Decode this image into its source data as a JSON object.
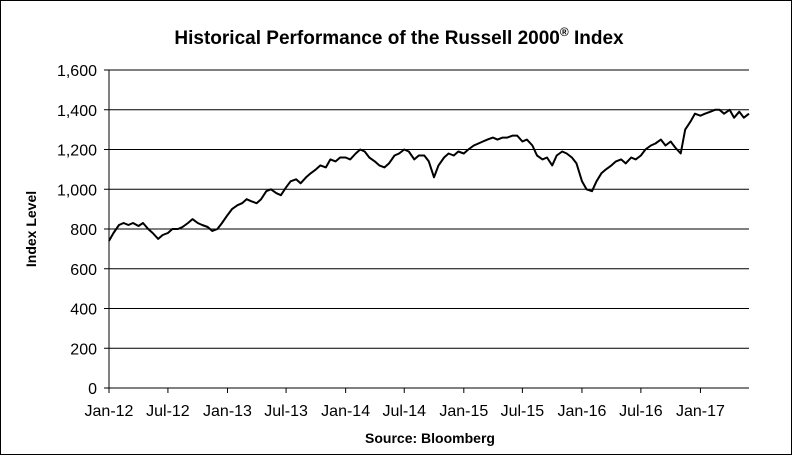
{
  "chart_data": {
    "type": "line",
    "title": "Historical Performance of the Russell 2000",
    "title_superscript": "®",
    "title_suffix": " Index",
    "ylabel": "Index Level",
    "xlabel": "Source: Bloomberg",
    "ylim": [
      0,
      1600
    ],
    "y_ticks": [
      "0",
      "200",
      "400",
      "600",
      "800",
      "1,000",
      "1,200",
      "1,400",
      "1,600"
    ],
    "y_tick_values": [
      0,
      200,
      400,
      600,
      800,
      1000,
      1200,
      1400,
      1600
    ],
    "x_ticks": [
      "Jan-12",
      "Jul-12",
      "Jan-13",
      "Jul-13",
      "Jan-14",
      "Jul-14",
      "Jan-15",
      "Jul-15",
      "Jan-16",
      "Jul-16",
      "Jan-17"
    ],
    "x_tick_dates": [
      "2012-01-01",
      "2012-07-01",
      "2013-01-01",
      "2013-07-01",
      "2014-01-01",
      "2014-07-01",
      "2015-01-01",
      "2015-07-01",
      "2016-01-01",
      "2016-07-01",
      "2017-01-01"
    ],
    "x_range": [
      "2012-01-01",
      "2017-05-31"
    ],
    "grid": "horizontal",
    "line_color": "#000000",
    "series": [
      {
        "x": [
          "2012-01-01",
          "2012-01-15",
          "2012-02-01",
          "2012-02-15",
          "2012-03-01",
          "2012-03-15",
          "2012-04-01",
          "2012-04-15",
          "2012-05-01",
          "2012-05-15",
          "2012-06-01",
          "2012-06-15",
          "2012-07-01",
          "2012-07-15",
          "2012-08-01",
          "2012-08-15",
          "2012-09-01",
          "2012-09-15",
          "2012-10-01",
          "2012-10-15",
          "2012-11-01",
          "2012-11-15",
          "2012-12-01",
          "2012-12-15",
          "2013-01-01",
          "2013-01-15",
          "2013-02-01",
          "2013-02-15",
          "2013-03-01",
          "2013-03-15",
          "2013-04-01",
          "2013-04-15",
          "2013-05-01",
          "2013-05-15",
          "2013-06-01",
          "2013-06-15",
          "2013-07-01",
          "2013-07-15",
          "2013-08-01",
          "2013-08-15",
          "2013-09-01",
          "2013-09-15",
          "2013-10-01",
          "2013-10-15",
          "2013-11-01",
          "2013-11-15",
          "2013-12-01",
          "2013-12-15",
          "2014-01-01",
          "2014-01-15",
          "2014-02-01",
          "2014-02-15",
          "2014-03-01",
          "2014-03-15",
          "2014-04-01",
          "2014-04-15",
          "2014-05-01",
          "2014-05-15",
          "2014-06-01",
          "2014-06-15",
          "2014-07-01",
          "2014-07-15",
          "2014-08-01",
          "2014-08-15",
          "2014-09-01",
          "2014-09-15",
          "2014-10-01",
          "2014-10-15",
          "2014-11-01",
          "2014-11-15",
          "2014-12-01",
          "2014-12-15",
          "2015-01-01",
          "2015-01-15",
          "2015-02-01",
          "2015-02-15",
          "2015-03-01",
          "2015-03-15",
          "2015-04-01",
          "2015-04-15",
          "2015-05-01",
          "2015-05-15",
          "2015-06-01",
          "2015-06-15",
          "2015-07-01",
          "2015-07-15",
          "2015-08-01",
          "2015-08-15",
          "2015-09-01",
          "2015-09-15",
          "2015-10-01",
          "2015-10-15",
          "2015-11-01",
          "2015-11-15",
          "2015-12-01",
          "2015-12-15",
          "2016-01-01",
          "2016-01-15",
          "2016-02-01",
          "2016-02-15",
          "2016-03-01",
          "2016-03-15",
          "2016-04-01",
          "2016-04-15",
          "2016-05-01",
          "2016-05-15",
          "2016-06-01",
          "2016-06-15",
          "2016-07-01",
          "2016-07-15",
          "2016-08-01",
          "2016-08-15",
          "2016-09-01",
          "2016-09-15",
          "2016-10-01",
          "2016-10-15",
          "2016-11-01",
          "2016-11-15",
          "2016-12-01",
          "2016-12-15",
          "2017-01-01",
          "2017-01-15",
          "2017-02-01",
          "2017-02-15",
          "2017-03-01",
          "2017-03-15",
          "2017-04-01",
          "2017-04-15",
          "2017-05-01",
          "2017-05-15",
          "2017-05-31"
        ],
        "values": [
          740,
          780,
          820,
          830,
          820,
          830,
          815,
          830,
          800,
          780,
          750,
          770,
          780,
          800,
          800,
          810,
          830,
          850,
          830,
          820,
          810,
          790,
          800,
          830,
          870,
          900,
          920,
          930,
          950,
          940,
          930,
          950,
          990,
          1000,
          980,
          970,
          1010,
          1040,
          1050,
          1030,
          1060,
          1080,
          1100,
          1120,
          1110,
          1150,
          1140,
          1160,
          1160,
          1150,
          1180,
          1200,
          1190,
          1160,
          1140,
          1120,
          1110,
          1130,
          1170,
          1180,
          1200,
          1190,
          1150,
          1170,
          1170,
          1140,
          1060,
          1120,
          1160,
          1180,
          1170,
          1190,
          1180,
          1200,
          1220,
          1230,
          1240,
          1250,
          1260,
          1250,
          1260,
          1260,
          1270,
          1270,
          1240,
          1250,
          1220,
          1170,
          1150,
          1160,
          1120,
          1170,
          1190,
          1180,
          1160,
          1130,
          1040,
          1000,
          990,
          1040,
          1080,
          1100,
          1120,
          1140,
          1150,
          1130,
          1160,
          1150,
          1170,
          1200,
          1220,
          1230,
          1250,
          1220,
          1240,
          1210,
          1180,
          1300,
          1340,
          1380,
          1370,
          1380,
          1390,
          1400,
          1400,
          1380,
          1400,
          1360,
          1390,
          1360,
          1380
        ]
      }
    ]
  }
}
